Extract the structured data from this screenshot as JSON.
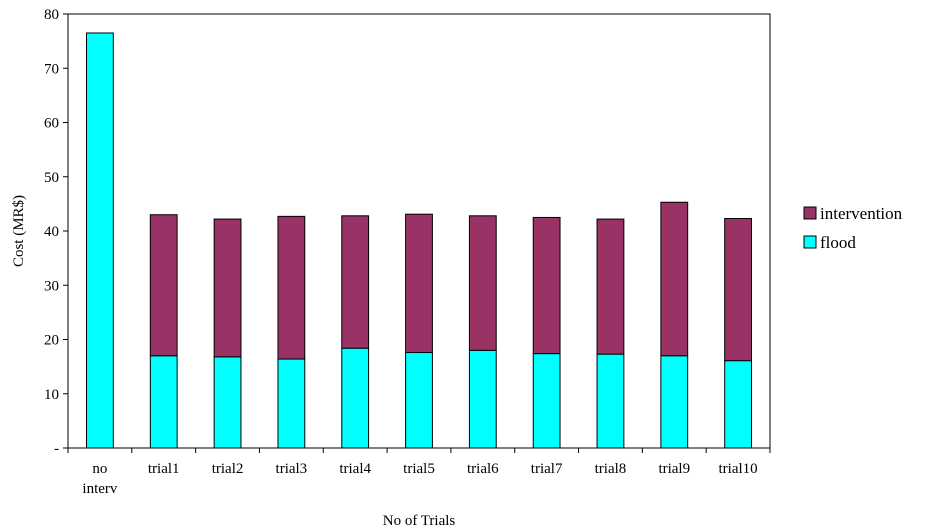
{
  "chart_data": {
    "type": "bar",
    "stacked": true,
    "categories": [
      [
        "no",
        "interv"
      ],
      [
        "trial1"
      ],
      [
        "trial2"
      ],
      [
        "trial3"
      ],
      [
        "trial4"
      ],
      [
        "trial5"
      ],
      [
        "trial6"
      ],
      [
        "trial7"
      ],
      [
        "trial8"
      ],
      [
        "trial9"
      ],
      [
        "trial10"
      ]
    ],
    "series": [
      {
        "name": "flood",
        "color": "#00FFFF",
        "values": [
          76.5,
          17.0,
          16.8,
          16.4,
          18.4,
          17.6,
          18.0,
          17.4,
          17.3,
          17.0,
          16.1
        ]
      },
      {
        "name": "intervention",
        "color": "#993366",
        "values": [
          0,
          26.0,
          25.4,
          26.3,
          24.4,
          25.5,
          24.8,
          25.1,
          24.9,
          28.3,
          26.2
        ]
      }
    ],
    "xlabel": "No of Trials",
    "ylabel": "Cost (MR$)",
    "ylim": [
      0,
      80
    ],
    "yticks": [
      0,
      10,
      20,
      30,
      40,
      50,
      60,
      70,
      80
    ],
    "ytick_labels": [
      "-",
      "10",
      "20",
      "30",
      "40",
      "50",
      "60",
      "70",
      "80"
    ],
    "legend": {
      "placement": "right",
      "entries": [
        "intervention",
        "flood"
      ]
    },
    "grid": false
  }
}
